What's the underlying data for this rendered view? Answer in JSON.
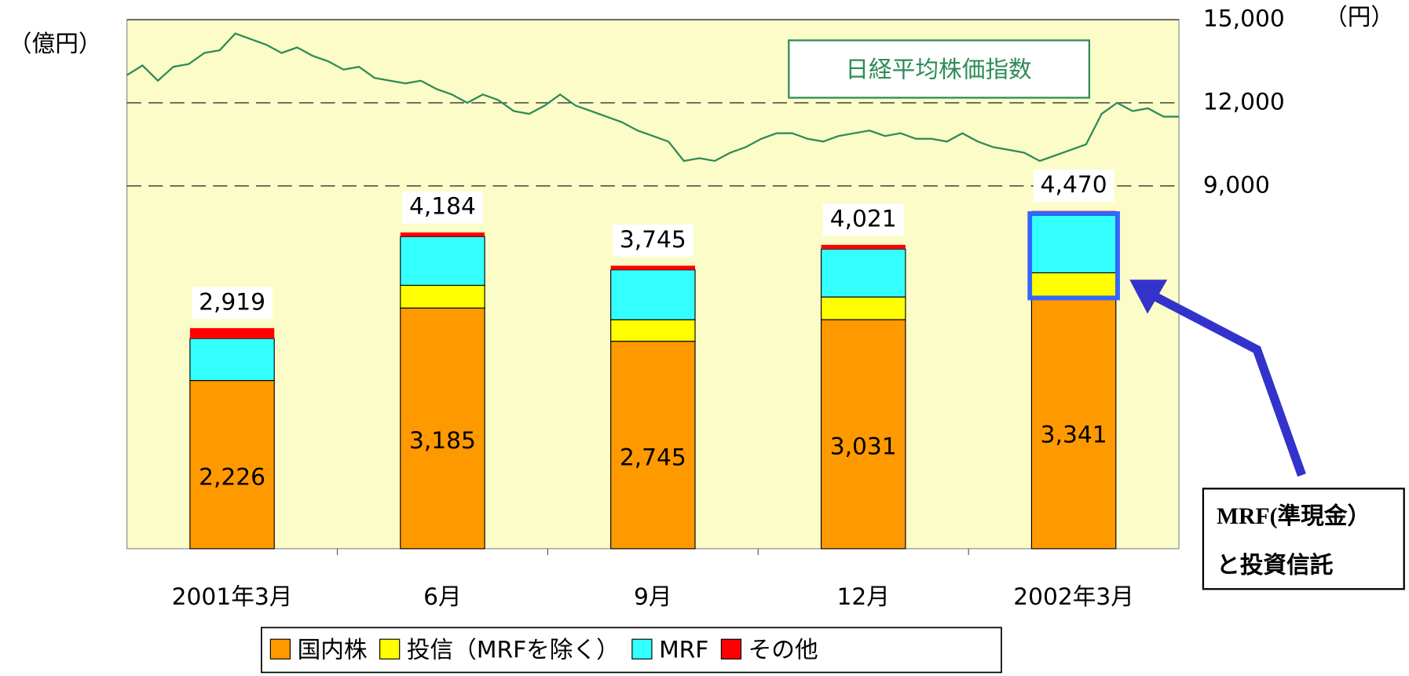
{
  "chart_data": {
    "type": "stacked-bar",
    "y_label": "（億円）",
    "y2_label": "（円）",
    "categories": [
      "2001年3月",
      "6月",
      "9月",
      "12月",
      "2002年3月"
    ],
    "ylim": [
      0,
      7000
    ],
    "series": [
      {
        "name": "国内株",
        "color": "#ff9900",
        "values": [
          2226,
          3185,
          2745,
          3031,
          3341
        ],
        "value_labels": [
          "2,226",
          "3,185",
          "2,745",
          "3,031",
          "3,341"
        ]
      },
      {
        "name": "投信（MRFを除く）",
        "color": "#ffff00",
        "values": [
          0,
          300,
          285,
          300,
          310
        ]
      },
      {
        "name": "MRF",
        "color": "#33ffff",
        "values": [
          555,
          644,
          660,
          634,
          761
        ]
      },
      {
        "name": "その他",
        "color": "#ff0000",
        "values": [
          138,
          55,
          55,
          56,
          58
        ]
      }
    ],
    "totals": [
      2919,
      4184,
      3745,
      4021,
      4470
    ],
    "total_labels": [
      "2,919",
      "4,184",
      "3,745",
      "4,021",
      "4,470"
    ],
    "line_series": {
      "name": "日経平均株価指数",
      "type": "line",
      "axis": "y2",
      "color": "#2e8b57",
      "values": [
        13000,
        13350,
        12800,
        13300,
        13400,
        13800,
        13900,
        14500,
        14300,
        14100,
        13800,
        14000,
        13700,
        13500,
        13200,
        13300,
        12900,
        12800,
        12700,
        12800,
        12500,
        12300,
        12000,
        12300,
        12100,
        11700,
        11600,
        11900,
        12300,
        11900,
        11700,
        11500,
        11300,
        11000,
        10800,
        10600,
        9900,
        10000,
        9900,
        10200,
        10400,
        10700,
        10900,
        10900,
        10700,
        10600,
        10800,
        10900,
        11000,
        10800,
        10900,
        10700,
        10700,
        10600,
        10900,
        10600,
        10400,
        10300,
        10200,
        9900,
        10100,
        10300,
        10500,
        11600,
        12000,
        11700,
        11800,
        11500,
        11500
      ]
    },
    "y2lim": [
      -4100,
      15000
    ],
    "y2ticks": [
      {
        "value": 9000,
        "label": "9,000"
      },
      {
        "value": 12000,
        "label": "12,000"
      },
      {
        "value": 15000,
        "label": "15,000"
      }
    ],
    "grid": true,
    "legend": "bottom",
    "callout": [
      "MRF(準現金）",
      "と投資信託"
    ]
  }
}
